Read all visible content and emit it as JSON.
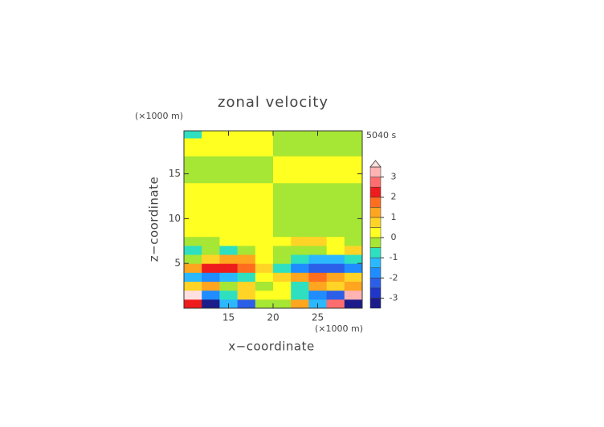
{
  "chart_data": {
    "type": "contour",
    "title": "zonal velocity",
    "time_label": "5040 s",
    "xlabel": "x−coordinate",
    "ylabel": "z−coordinate",
    "xunit": "(×1000 m)",
    "yunit": "(×1000 m)",
    "xlim": [
      10,
      30
    ],
    "ylim": [
      0,
      19.8
    ],
    "xticks": [
      15,
      20,
      25
    ],
    "yticks": [
      5,
      10,
      15
    ],
    "x": [
      11,
      13,
      15,
      17,
      19,
      21,
      23,
      25,
      27,
      29
    ],
    "y": [
      0.5,
      1.5,
      2.5,
      3.5,
      4.5,
      5.5,
      6.5,
      7.5,
      8.5,
      9.5,
      10.5,
      11.5,
      12.5,
      13.5,
      14.5,
      15.5,
      16.5,
      17.5,
      18.5,
      19.5
    ],
    "z": [
      [
        2.4,
        -3.2,
        -1.2,
        -2.1,
        -0.3,
        -0.3,
        1.3,
        -1.2,
        2.6,
        -3.1
      ],
      [
        3.6,
        -1.6,
        -0.8,
        0.8,
        0.3,
        0.3,
        -0.6,
        -1.8,
        -2.2,
        3.2
      ],
      [
        0.6,
        1.3,
        -0.3,
        0.8,
        -0.3,
        0.3,
        -0.6,
        1.2,
        0.8,
        1.4
      ],
      [
        -1.3,
        -1.8,
        -1.2,
        -0.6,
        0.3,
        0.6,
        1.2,
        1.6,
        1.3,
        0.8
      ],
      [
        1.2,
        2.3,
        2.2,
        1.8,
        0.6,
        -0.6,
        -1.8,
        -2.4,
        -2.5,
        -1.8
      ],
      [
        -0.3,
        0.6,
        1.2,
        1.3,
        0.3,
        -0.3,
        -0.8,
        -1.2,
        -1.3,
        -0.8
      ],
      [
        -0.8,
        -0.3,
        -0.6,
        -0.3,
        0.3,
        -0.3,
        -0.3,
        -0.3,
        0.3,
        0.6
      ],
      [
        -0.3,
        -0.3,
        0.3,
        0.3,
        0.3,
        0.3,
        0.8,
        0.6,
        0.3,
        -0.3
      ],
      [
        0.3,
        0.3,
        0.3,
        0.3,
        0.3,
        -0.2,
        -0.2,
        -0.2,
        -0.2,
        -0.2
      ],
      [
        0.3,
        0.3,
        0.3,
        0.3,
        0.3,
        -0.3,
        -0.3,
        -0.3,
        -0.3,
        -0.3
      ],
      [
        0.3,
        0.3,
        0.3,
        0.3,
        0.3,
        -0.3,
        -0.3,
        -0.3,
        -0.3,
        -0.3
      ],
      [
        0.3,
        0.3,
        0.3,
        0.3,
        0.3,
        -0.3,
        -0.3,
        -0.3,
        -0.3,
        -0.3
      ],
      [
        0.3,
        0.3,
        0.3,
        0.3,
        0.3,
        -0.3,
        -0.3,
        -0.3,
        -0.3,
        -0.3
      ],
      [
        0.3,
        0.3,
        0.3,
        0.3,
        0.3,
        -0.3,
        -0.3,
        -0.3,
        -0.3,
        -0.3
      ],
      [
        -0.3,
        -0.3,
        -0.3,
        -0.3,
        -0.3,
        0.2,
        0.2,
        0.2,
        0.2,
        0.2
      ],
      [
        -0.3,
        -0.3,
        -0.3,
        -0.3,
        -0.3,
        0.2,
        0.2,
        0.2,
        0.2,
        0.2
      ],
      [
        -0.3,
        -0.3,
        -0.3,
        -0.3,
        -0.3,
        0.2,
        0.2,
        0.2,
        0.2,
        0.2
      ],
      [
        0.3,
        0.3,
        0.3,
        0.3,
        0.3,
        -0.3,
        -0.3,
        -0.3,
        -0.3,
        -0.3
      ],
      [
        0.3,
        0.3,
        0.3,
        0.3,
        0.3,
        -0.3,
        -0.3,
        -0.3,
        -0.3,
        -0.3
      ],
      [
        -0.8,
        0.2,
        0.2,
        0.2,
        0.2,
        -0.2,
        -0.2,
        -0.2,
        -0.2,
        -0.2
      ]
    ],
    "levels": [
      -3.5,
      -3,
      -2.5,
      -2,
      -1.5,
      -1,
      -0.5,
      0,
      0.5,
      1,
      1.5,
      2,
      2.5,
      3,
      3.5
    ],
    "colors": [
      "#1c1c8a",
      "#1f36c8",
      "#2c5fe8",
      "#1f8cff",
      "#2cb8ff",
      "#2ee0c0",
      "#a6e634",
      "#ffff22",
      "#ffd426",
      "#ffa51f",
      "#ff6d1f",
      "#ee1c1c",
      "#ff6e6e",
      "#ffb3b3"
    ],
    "over_color": "#ffe0e0",
    "colorbar_ticks": [
      -3,
      -2,
      -1,
      0,
      1,
      2,
      3
    ]
  }
}
